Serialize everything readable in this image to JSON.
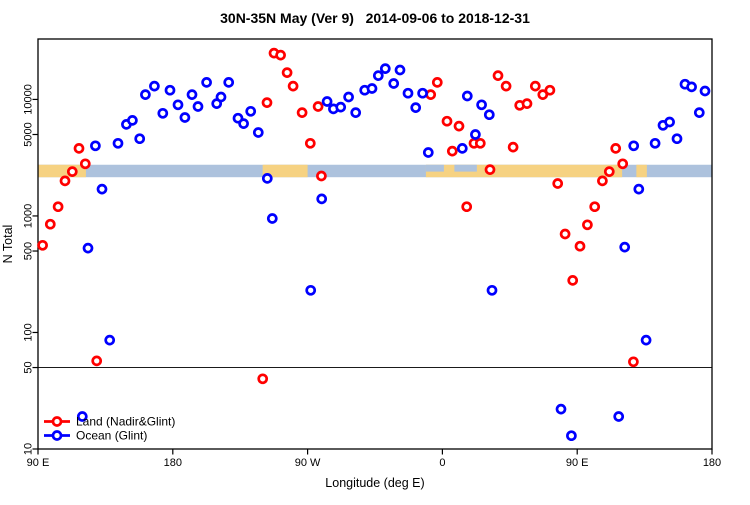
{
  "title": "30N-35N May (Ver 9)   2014-09-06 to 2018-12-31",
  "axes": {
    "xlabel": "Longitude (deg E)",
    "ylabel": "N Total"
  },
  "chart_data": {
    "type": "scatter",
    "y_scale": "log",
    "ylim": [
      10,
      33000
    ],
    "x_span_deg": [
      0,
      450
    ],
    "x_ticks": [
      {
        "deg": 0,
        "label": "90 E"
      },
      {
        "deg": 90,
        "label": "180"
      },
      {
        "deg": 180,
        "label": "90 W"
      },
      {
        "deg": 270,
        "label": "0"
      },
      {
        "deg": 360,
        "label": "90 E"
      },
      {
        "deg": 450,
        "label": "180"
      }
    ],
    "y_ticks": [
      {
        "v": 10000,
        "label": "10000"
      },
      {
        "v": 5000,
        "label": "5000"
      },
      {
        "v": 1000,
        "label": "1000"
      },
      {
        "v": 500,
        "label": "500"
      },
      {
        "v": 100,
        "label": "100"
      },
      {
        "v": 50,
        "label": "50"
      },
      {
        "v": 10,
        "label": "10"
      }
    ],
    "reference_line_value": 50,
    "map_band": {
      "top_value": 2750,
      "bottom_value": 2150,
      "land_color": "#F6D282",
      "ocean_color": "#ADC2DD",
      "land_segments_deg": [
        [
          0,
          32
        ],
        [
          150,
          180
        ],
        [
          259,
          390
        ],
        [
          399.5,
          406.5
        ]
      ],
      "ocean_notches_deg": [
        [
          259,
          271
        ],
        [
          278,
          293
        ]
      ]
    },
    "series": [
      {
        "id": "land",
        "name": "Land (Nadir&Glint)",
        "color": "#FF0000",
        "points": [
          [
            27.4,
            3800
          ],
          [
            31.6,
            2800
          ],
          [
            22.9,
            2400
          ],
          [
            18,
            2000
          ],
          [
            13.4,
            1200
          ],
          [
            8.2,
            850
          ],
          [
            3.1,
            560
          ],
          [
            39.2,
            57
          ],
          [
            150,
            40
          ],
          [
            152.9,
            9400
          ],
          [
            157.6,
            25000
          ],
          [
            162,
            24000
          ],
          [
            166.3,
            17000
          ],
          [
            170.3,
            13000
          ],
          [
            176.3,
            7700
          ],
          [
            187,
            8700
          ],
          [
            181.8,
            4200
          ],
          [
            189.2,
            2200
          ],
          [
            262.2,
            11000
          ],
          [
            266.6,
            14000
          ],
          [
            273.1,
            6500
          ],
          [
            281.1,
            5900
          ],
          [
            291.1,
            4200
          ],
          [
            295.3,
            4200
          ],
          [
            276.6,
            3600
          ],
          [
            286.2,
            1200
          ],
          [
            301.8,
            2500
          ],
          [
            307.1,
            16000
          ],
          [
            312.5,
            13000
          ],
          [
            332,
            13000
          ],
          [
            337,
            11000
          ],
          [
            341.8,
            12000
          ],
          [
            321.6,
            8900
          ],
          [
            326.5,
            9200
          ],
          [
            317.2,
            3900
          ],
          [
            385.7,
            3800
          ],
          [
            390.4,
            2800
          ],
          [
            381.4,
            2400
          ],
          [
            347,
            1900
          ],
          [
            376.8,
            2000
          ],
          [
            371.7,
            1200
          ],
          [
            366.8,
            840
          ],
          [
            351.9,
            700
          ],
          [
            361.9,
            550
          ],
          [
            357,
            280
          ],
          [
            397.5,
            56
          ]
        ]
      },
      {
        "id": "ocean",
        "name": "Ocean (Glint)",
        "color": "#0000FF",
        "points": [
          [
            38.3,
            4000
          ],
          [
            53.4,
            4200
          ],
          [
            59,
            6100
          ],
          [
            63,
            6600
          ],
          [
            67.9,
            4600
          ],
          [
            71.7,
            11000
          ],
          [
            77.7,
            13000
          ],
          [
            83.3,
            7600
          ],
          [
            88.1,
            12000
          ],
          [
            93.5,
            9000
          ],
          [
            98.1,
            7000
          ],
          [
            102.8,
            11000
          ],
          [
            106.8,
            8700
          ],
          [
            112.6,
            14000
          ],
          [
            119.3,
            9200
          ],
          [
            122.2,
            10500
          ],
          [
            127.3,
            14000
          ],
          [
            133.5,
            6900
          ],
          [
            137.3,
            6200
          ],
          [
            142,
            7900
          ],
          [
            147.1,
            5200
          ],
          [
            193,
            9600
          ],
          [
            197.2,
            8300
          ],
          [
            202.1,
            8600
          ],
          [
            207.4,
            10500
          ],
          [
            212.1,
            7700
          ],
          [
            218.1,
            12000
          ],
          [
            223,
            12400
          ],
          [
            227.2,
            16000
          ],
          [
            231.9,
            18400
          ],
          [
            237.5,
            13700
          ],
          [
            241.7,
            17900
          ],
          [
            247,
            11300
          ],
          [
            252.2,
            8500
          ],
          [
            256.8,
            11300
          ],
          [
            286.6,
            10700
          ],
          [
            292,
            5000
          ],
          [
            296.2,
            9000
          ],
          [
            301.3,
            7400
          ],
          [
            283.3,
            3800
          ],
          [
            260.6,
            3500
          ],
          [
            432,
            13500
          ],
          [
            436.4,
            12800
          ],
          [
            445.3,
            11800
          ],
          [
            441.5,
            7700
          ],
          [
            417.3,
            6000
          ],
          [
            421.7,
            6400
          ],
          [
            426.6,
            4600
          ],
          [
            412,
            4200
          ],
          [
            397.7,
            4000
          ],
          [
            42.7,
            1700
          ],
          [
            33.4,
            530
          ],
          [
            153.1,
            2100
          ],
          [
            156.4,
            950
          ],
          [
            189.4,
            1400
          ],
          [
            182.1,
            230
          ],
          [
            303.1,
            230
          ],
          [
            401.1,
            1700
          ],
          [
            391.7,
            540
          ],
          [
            47.9,
            86
          ],
          [
            29.6,
            19
          ],
          [
            406,
            86
          ],
          [
            349.2,
            22
          ],
          [
            387.7,
            19
          ],
          [
            356.1,
            13
          ]
        ]
      }
    ],
    "legend": {
      "position": "bottom-left"
    }
  }
}
